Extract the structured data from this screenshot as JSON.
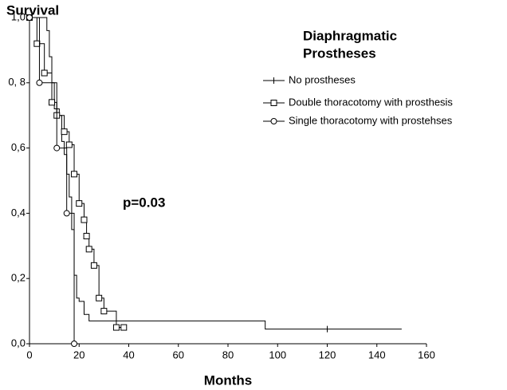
{
  "chart_data": {
    "type": "step",
    "title": "Survival",
    "legend_title": [
      "Diaphragmatic",
      "Prostheses"
    ],
    "annotation": "p=0.03",
    "x_label": "Months",
    "xlim": [
      0,
      160
    ],
    "xticks": [
      0,
      20,
      40,
      60,
      80,
      100,
      120,
      140,
      160
    ],
    "ylim": [
      0,
      1
    ],
    "yticks": [
      {
        "value": 0,
        "label": "0,0"
      },
      {
        "value": 0.2,
        "label": "0,2"
      },
      {
        "value": 0.4,
        "label": "0,4"
      },
      {
        "value": 0.6,
        "label": "0,6"
      },
      {
        "value": 0.8,
        "label": "0, 8"
      },
      {
        "value": 1,
        "label": "1,0"
      }
    ],
    "series": [
      {
        "name": "No prostheses",
        "color": "#000000",
        "marker": "tick",
        "x": [
          0,
          7,
          8,
          9,
          10,
          12,
          13,
          14,
          15,
          16,
          17,
          18,
          19,
          20,
          22,
          24,
          95,
          150
        ],
        "values": [
          1.0,
          0.96,
          0.88,
          0.8,
          0.72,
          0.7,
          0.62,
          0.58,
          0.52,
          0.45,
          0.35,
          0.21,
          0.14,
          0.13,
          0.09,
          0.07,
          0.045,
          0.045
        ],
        "censor_x": [
          120
        ],
        "censor_values": [
          0.045
        ]
      },
      {
        "name": "Double thoracotomy with prosthesis",
        "color": "#000000",
        "marker": "square",
        "x": [
          0,
          3,
          6,
          9,
          11,
          14,
          16,
          18,
          20,
          22,
          23,
          24,
          26,
          28,
          30,
          35,
          38
        ],
        "values": [
          1.0,
          0.92,
          0.83,
          0.74,
          0.7,
          0.65,
          0.61,
          0.52,
          0.43,
          0.38,
          0.33,
          0.29,
          0.24,
          0.14,
          0.1,
          0.05,
          0.05
        ]
      },
      {
        "name": "Single thoracotomy with prostehses",
        "color": "#000000",
        "marker": "circle",
        "x": [
          0,
          4,
          11,
          15,
          18
        ],
        "values": [
          1.0,
          0.8,
          0.6,
          0.4,
          0.0
        ]
      }
    ]
  }
}
